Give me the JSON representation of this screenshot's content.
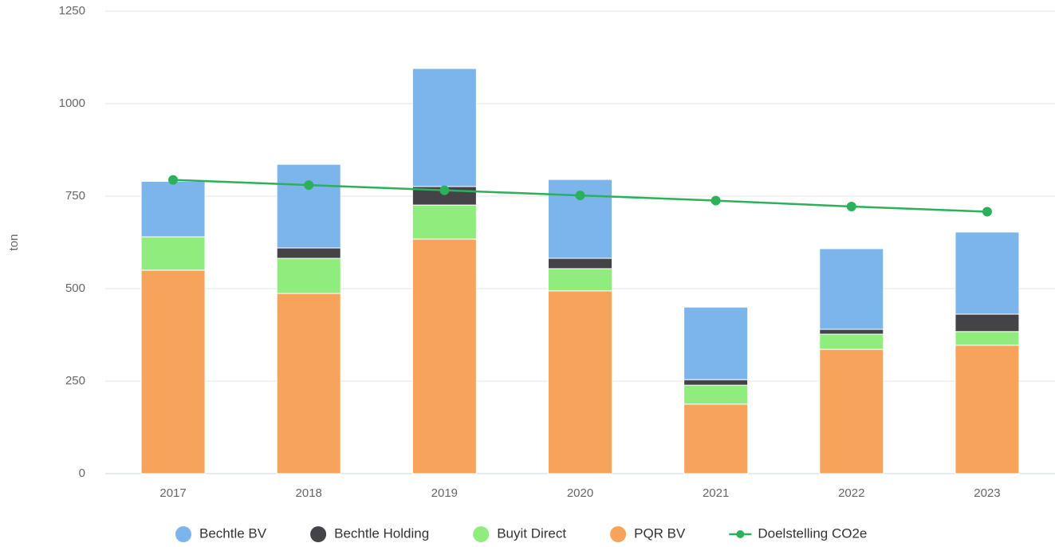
{
  "chart_data": {
    "type": "bar",
    "stacked": true,
    "y_label": "ton",
    "categories": [
      "2017",
      "2018",
      "2019",
      "2020",
      "2021",
      "2022",
      "2023"
    ],
    "ylim": [
      0,
      1250
    ],
    "yticks": [
      0,
      250,
      500,
      750,
      1000,
      1250
    ],
    "grid": true,
    "legend": "bottom",
    "series": [
      {
        "name": "Bechtle BV",
        "color": "#7cb5ec",
        "values": [
          150,
          226,
          319,
          213,
          196,
          218,
          222
        ]
      },
      {
        "name": "Bechtle Holding",
        "color": "#434348",
        "values": [
          0,
          28,
          50,
          28,
          15,
          13,
          47
        ]
      },
      {
        "name": "Buyit Direct",
        "color": "#90ed7d",
        "values": [
          90,
          95,
          92,
          60,
          51,
          41,
          37
        ]
      },
      {
        "name": "PQR BV",
        "color": "#f7a35c",
        "values": [
          550,
          487,
          634,
          494,
          188,
          336,
          347
        ]
      },
      {
        "name": "Doelstelling CO2e",
        "color": "#2cb05a",
        "type": "line",
        "values": [
          794,
          780,
          766,
          752,
          738,
          722,
          708
        ]
      }
    ]
  }
}
